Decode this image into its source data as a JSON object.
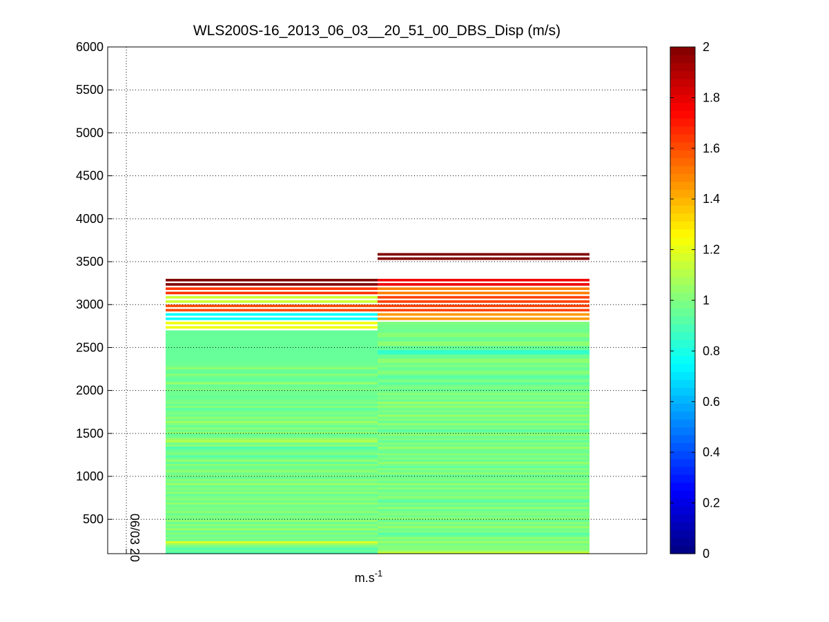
{
  "chart_data": {
    "type": "heatmap",
    "title": "WLS200S-16_2013_06_03__20_51_00_DBS_Disp (m/s)",
    "xlabel": "m.s",
    "xlabel_superscript": "-1",
    "ylabel": "",
    "x_tick_labels": [
      "06/03 20"
    ],
    "ylim": [
      100,
      6000
    ],
    "y_ticks": [
      500,
      1000,
      1500,
      2000,
      2500,
      3000,
      3500,
      4000,
      4500,
      5000,
      5500,
      6000
    ],
    "grid": true,
    "colormap": "jet",
    "colorbar": {
      "range": [
        0,
        2
      ],
      "ticks": [
        0,
        0.2,
        0.4,
        0.6,
        0.8,
        1,
        1.2,
        1.4,
        1.6,
        1.8,
        2
      ],
      "tick_labels": [
        "0",
        "0.2",
        "0.4",
        "0.6",
        "0.8",
        "1",
        "1.2",
        "1.4",
        "1.6",
        "1.8",
        "2"
      ]
    },
    "altitude_bin_m": 25,
    "columns": [
      {
        "cells": [
          {
            "y": 125,
            "v": 0.9
          },
          {
            "y": 150,
            "v": 0.95
          },
          {
            "y": 175,
            "v": 0.92
          },
          {
            "y": 200,
            "v": 0.98
          },
          {
            "y": 225,
            "v": 1.05
          },
          {
            "y": 250,
            "v": 1.18
          },
          {
            "y": 275,
            "v": 0.97
          },
          {
            "y": 300,
            "v": 1.0
          },
          {
            "y": 325,
            "v": 0.96
          },
          {
            "y": 350,
            "v": 1.02
          },
          {
            "y": 375,
            "v": 0.95
          },
          {
            "y": 400,
            "v": 1.05
          },
          {
            "y": 425,
            "v": 0.98
          },
          {
            "y": 450,
            "v": 1.02
          },
          {
            "y": 475,
            "v": 0.96
          },
          {
            "y": 500,
            "v": 1.04
          },
          {
            "y": 525,
            "v": 0.97
          },
          {
            "y": 550,
            "v": 1.01
          },
          {
            "y": 575,
            "v": 0.95
          },
          {
            "y": 600,
            "v": 1.03
          },
          {
            "y": 625,
            "v": 0.98
          },
          {
            "y": 650,
            "v": 1.0
          },
          {
            "y": 675,
            "v": 0.96
          },
          {
            "y": 700,
            "v": 1.04
          },
          {
            "y": 725,
            "v": 0.97
          },
          {
            "y": 750,
            "v": 1.01
          },
          {
            "y": 775,
            "v": 0.99
          },
          {
            "y": 800,
            "v": 0.95
          },
          {
            "y": 825,
            "v": 1.03
          },
          {
            "y": 850,
            "v": 0.98
          },
          {
            "y": 875,
            "v": 1.0
          },
          {
            "y": 900,
            "v": 0.96
          },
          {
            "y": 925,
            "v": 1.05
          },
          {
            "y": 950,
            "v": 0.98
          },
          {
            "y": 975,
            "v": 1.02
          },
          {
            "y": 1000,
            "v": 0.95
          },
          {
            "y": 1025,
            "v": 1.0
          },
          {
            "y": 1050,
            "v": 0.97
          },
          {
            "y": 1075,
            "v": 1.03
          },
          {
            "y": 1100,
            "v": 0.99
          },
          {
            "y": 1125,
            "v": 0.96
          },
          {
            "y": 1150,
            "v": 1.02
          },
          {
            "y": 1175,
            "v": 0.94
          },
          {
            "y": 1200,
            "v": 1.04
          },
          {
            "y": 1225,
            "v": 0.97
          },
          {
            "y": 1250,
            "v": 0.92
          },
          {
            "y": 1275,
            "v": 1.0
          },
          {
            "y": 1300,
            "v": 0.98
          },
          {
            "y": 1325,
            "v": 0.95
          },
          {
            "y": 1350,
            "v": 0.9
          },
          {
            "y": 1375,
            "v": 1.02
          },
          {
            "y": 1400,
            "v": 0.97
          },
          {
            "y": 1425,
            "v": 1.1
          },
          {
            "y": 1450,
            "v": 1.05
          },
          {
            "y": 1475,
            "v": 0.98
          },
          {
            "y": 1500,
            "v": 0.95
          },
          {
            "y": 1525,
            "v": 1.03
          },
          {
            "y": 1550,
            "v": 0.97
          },
          {
            "y": 1575,
            "v": 1.02
          },
          {
            "y": 1600,
            "v": 0.95
          },
          {
            "y": 1625,
            "v": 1.0
          },
          {
            "y": 1650,
            "v": 1.06
          },
          {
            "y": 1675,
            "v": 0.98
          },
          {
            "y": 1700,
            "v": 1.03
          },
          {
            "y": 1725,
            "v": 0.96
          },
          {
            "y": 1750,
            "v": 1.0
          },
          {
            "y": 1775,
            "v": 0.97
          },
          {
            "y": 1800,
            "v": 0.93
          },
          {
            "y": 1825,
            "v": 1.01
          },
          {
            "y": 1850,
            "v": 0.96
          },
          {
            "y": 1875,
            "v": 1.0
          },
          {
            "y": 1900,
            "v": 0.98
          },
          {
            "y": 1925,
            "v": 0.96
          },
          {
            "y": 1950,
            "v": 0.95
          },
          {
            "y": 1975,
            "v": 0.98
          },
          {
            "y": 2000,
            "v": 0.96
          },
          {
            "y": 2025,
            "v": 1.0
          },
          {
            "y": 2050,
            "v": 0.97
          },
          {
            "y": 2075,
            "v": 0.95
          },
          {
            "y": 2100,
            "v": 1.05
          },
          {
            "y": 2125,
            "v": 0.96
          },
          {
            "y": 2150,
            "v": 0.94
          },
          {
            "y": 2175,
            "v": 0.97
          },
          {
            "y": 2200,
            "v": 1.02
          },
          {
            "y": 2225,
            "v": 0.95
          },
          {
            "y": 2250,
            "v": 0.95
          },
          {
            "y": 2275,
            "v": 1.03
          },
          {
            "y": 2300,
            "v": 0.98
          },
          {
            "y": 2325,
            "v": 0.96
          },
          {
            "y": 2350,
            "v": 0.96
          },
          {
            "y": 2375,
            "v": 0.95
          },
          {
            "y": 2400,
            "v": 0.95
          },
          {
            "y": 2425,
            "v": 0.95
          },
          {
            "y": 2450,
            "v": 0.95
          },
          {
            "y": 2475,
            "v": 0.95
          },
          {
            "y": 2500,
            "v": 0.95
          },
          {
            "y": 2525,
            "v": 0.95
          },
          {
            "y": 2550,
            "v": 0.95
          },
          {
            "y": 2575,
            "v": 0.95
          },
          {
            "y": 2600,
            "v": 0.95
          },
          {
            "y": 2625,
            "v": 0.95
          },
          {
            "y": 2650,
            "v": 0.95
          },
          {
            "y": 2675,
            "v": 0.95
          },
          {
            "y": 2700,
            "v": 0.95
          },
          {
            "y": 2750,
            "v": 1.22
          },
          {
            "y": 2800,
            "v": 1.22
          },
          {
            "y": 2850,
            "v": 0.75
          },
          {
            "y": 2900,
            "v": 0.75
          },
          {
            "y": 2950,
            "v": 1.6
          },
          {
            "y": 3000,
            "v": 1.6
          },
          {
            "y": 3050,
            "v": 1.15
          },
          {
            "y": 3100,
            "v": 1.15
          },
          {
            "y": 3150,
            "v": 1.65
          },
          {
            "y": 3200,
            "v": 1.65
          },
          {
            "y": 3250,
            "v": 2.0
          },
          {
            "y": 3300,
            "v": 2.0
          }
        ]
      },
      {
        "cells": [
          {
            "y": 125,
            "v": 1.15
          },
          {
            "y": 150,
            "v": 1.05
          },
          {
            "y": 175,
            "v": 1.0
          },
          {
            "y": 200,
            "v": 1.02
          },
          {
            "y": 225,
            "v": 0.98
          },
          {
            "y": 250,
            "v": 1.05
          },
          {
            "y": 275,
            "v": 0.99
          },
          {
            "y": 300,
            "v": 1.03
          },
          {
            "y": 325,
            "v": 0.95
          },
          {
            "y": 350,
            "v": 0.92
          },
          {
            "y": 375,
            "v": 1.0
          },
          {
            "y": 400,
            "v": 0.97
          },
          {
            "y": 425,
            "v": 1.05
          },
          {
            "y": 450,
            "v": 0.98
          },
          {
            "y": 475,
            "v": 1.02
          },
          {
            "y": 500,
            "v": 0.95
          },
          {
            "y": 525,
            "v": 1.03
          },
          {
            "y": 550,
            "v": 0.97
          },
          {
            "y": 575,
            "v": 1.01
          },
          {
            "y": 600,
            "v": 0.99
          },
          {
            "y": 625,
            "v": 0.95
          },
          {
            "y": 650,
            "v": 1.04
          },
          {
            "y": 675,
            "v": 0.96
          },
          {
            "y": 700,
            "v": 1.0
          },
          {
            "y": 725,
            "v": 0.92
          },
          {
            "y": 750,
            "v": 0.97
          },
          {
            "y": 775,
            "v": 1.03
          },
          {
            "y": 800,
            "v": 0.98
          },
          {
            "y": 825,
            "v": 1.0
          },
          {
            "y": 850,
            "v": 0.95
          },
          {
            "y": 875,
            "v": 1.02
          },
          {
            "y": 900,
            "v": 0.97
          },
          {
            "y": 925,
            "v": 1.04
          },
          {
            "y": 950,
            "v": 0.96
          },
          {
            "y": 975,
            "v": 1.0
          },
          {
            "y": 1000,
            "v": 0.98
          },
          {
            "y": 1025,
            "v": 0.95
          },
          {
            "y": 1050,
            "v": 1.03
          },
          {
            "y": 1075,
            "v": 0.97
          },
          {
            "y": 1100,
            "v": 1.01
          },
          {
            "y": 1125,
            "v": 0.94
          },
          {
            "y": 1150,
            "v": 0.99
          },
          {
            "y": 1175,
            "v": 1.04
          },
          {
            "y": 1200,
            "v": 0.96
          },
          {
            "y": 1225,
            "v": 1.0
          },
          {
            "y": 1250,
            "v": 0.97
          },
          {
            "y": 1275,
            "v": 1.02
          },
          {
            "y": 1300,
            "v": 0.95
          },
          {
            "y": 1325,
            "v": 0.98
          },
          {
            "y": 1350,
            "v": 1.05
          },
          {
            "y": 1375,
            "v": 0.97
          },
          {
            "y": 1400,
            "v": 1.01
          },
          {
            "y": 1425,
            "v": 0.94
          },
          {
            "y": 1450,
            "v": 1.0
          },
          {
            "y": 1475,
            "v": 0.96
          },
          {
            "y": 1500,
            "v": 1.03
          },
          {
            "y": 1525,
            "v": 0.98
          },
          {
            "y": 1550,
            "v": 0.92
          },
          {
            "y": 1575,
            "v": 1.0
          },
          {
            "y": 1600,
            "v": 0.97
          },
          {
            "y": 1625,
            "v": 1.04
          },
          {
            "y": 1650,
            "v": 0.95
          },
          {
            "y": 1675,
            "v": 1.01
          },
          {
            "y": 1700,
            "v": 0.98
          },
          {
            "y": 1725,
            "v": 1.05
          },
          {
            "y": 1750,
            "v": 0.96
          },
          {
            "y": 1775,
            "v": 1.0
          },
          {
            "y": 1800,
            "v": 0.97
          },
          {
            "y": 1825,
            "v": 1.03
          },
          {
            "y": 1850,
            "v": 0.99
          },
          {
            "y": 1875,
            "v": 1.06
          },
          {
            "y": 1900,
            "v": 0.96
          },
          {
            "y": 1925,
            "v": 1.0
          },
          {
            "y": 1950,
            "v": 0.97
          },
          {
            "y": 1975,
            "v": 1.02
          },
          {
            "y": 2000,
            "v": 0.98
          },
          {
            "y": 2025,
            "v": 0.95
          },
          {
            "y": 2050,
            "v": 1.01
          },
          {
            "y": 2075,
            "v": 0.97
          },
          {
            "y": 2100,
            "v": 0.93
          },
          {
            "y": 2125,
            "v": 1.0
          },
          {
            "y": 2150,
            "v": 0.96
          },
          {
            "y": 2175,
            "v": 0.92
          },
          {
            "y": 2200,
            "v": 0.97
          },
          {
            "y": 2225,
            "v": 1.03
          },
          {
            "y": 2250,
            "v": 0.98
          },
          {
            "y": 2275,
            "v": 0.95
          },
          {
            "y": 2300,
            "v": 1.0
          },
          {
            "y": 2325,
            "v": 0.97
          },
          {
            "y": 2350,
            "v": 1.03
          },
          {
            "y": 2375,
            "v": 1.03
          },
          {
            "y": 2400,
            "v": 0.96
          },
          {
            "y": 2425,
            "v": 0.96
          },
          {
            "y": 2450,
            "v": 0.85
          },
          {
            "y": 2475,
            "v": 0.85
          },
          {
            "y": 2500,
            "v": 0.95
          },
          {
            "y": 2525,
            "v": 0.95
          },
          {
            "y": 2550,
            "v": 1.03
          },
          {
            "y": 2575,
            "v": 1.03
          },
          {
            "y": 2600,
            "v": 0.96
          },
          {
            "y": 2625,
            "v": 0.96
          },
          {
            "y": 2650,
            "v": 1.02
          },
          {
            "y": 2675,
            "v": 1.02
          },
          {
            "y": 2700,
            "v": 0.97
          },
          {
            "y": 2725,
            "v": 0.97
          },
          {
            "y": 2750,
            "v": 0.98
          },
          {
            "y": 2775,
            "v": 0.98
          },
          {
            "y": 2800,
            "v": 1.0
          },
          {
            "y": 2850,
            "v": 1.45
          },
          {
            "y": 2900,
            "v": 1.45
          },
          {
            "y": 2950,
            "v": 1.62
          },
          {
            "y": 3000,
            "v": 1.62
          },
          {
            "y": 3050,
            "v": 1.62
          },
          {
            "y": 3100,
            "v": 1.62
          },
          {
            "y": 3150,
            "v": 1.5
          },
          {
            "y": 3200,
            "v": 1.5
          },
          {
            "y": 3250,
            "v": 1.78
          },
          {
            "y": 3300,
            "v": 1.78
          },
          {
            "y": 3550,
            "v": 2.0
          },
          {
            "y": 3600,
            "v": 2.0
          }
        ]
      }
    ]
  }
}
